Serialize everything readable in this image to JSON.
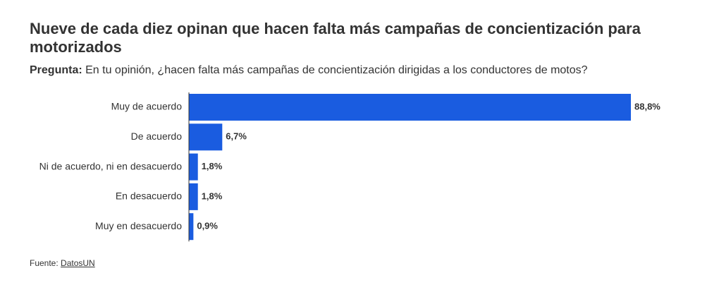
{
  "header": {
    "title": "Nueve de cada diez opinan que hacen falta más campañas de concientización para motorizados",
    "question_lead": "Pregunta:",
    "question_text": " En tu opinión, ¿hacen falta más campañas de concientización dirigidas a los conductores de motos?"
  },
  "footer": {
    "source_label": "Fuente:",
    "source_link": "DatosUN"
  },
  "colors": {
    "bar": "#1a5ce0",
    "text": "#333333",
    "axis": "#333333"
  },
  "chart_data": {
    "type": "bar",
    "orientation": "horizontal",
    "categories": [
      "Muy de acuerdo",
      "De acuerdo",
      "Ni de acuerdo, ni en desacuerdo",
      "En desacuerdo",
      "Muy en desacuerdo"
    ],
    "values": [
      88.8,
      6.7,
      1.8,
      1.8,
      0.9
    ],
    "value_labels": [
      "88,8%",
      "6,7%",
      "1,8%",
      "1,8%",
      "0,9%"
    ],
    "xlim": [
      0,
      88.8
    ],
    "grid": false,
    "legend": "none"
  }
}
